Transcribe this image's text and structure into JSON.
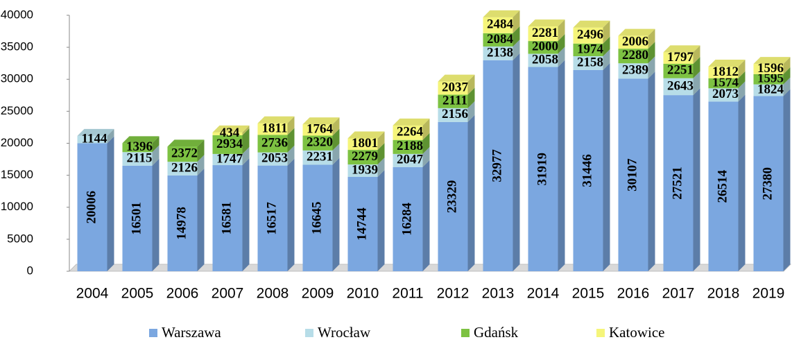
{
  "chart_data": {
    "type": "bar3d_stacked",
    "categories": [
      "2004",
      "2005",
      "2006",
      "2007",
      "2008",
      "2009",
      "2010",
      "2011",
      "2012",
      "2013",
      "2014",
      "2015",
      "2016",
      "2017",
      "2018",
      "2019"
    ],
    "series": [
      {
        "name": "Warszawa",
        "color": "#7ba7e0",
        "values": [
          20006,
          16501,
          14978,
          16581,
          16517,
          16645,
          14744,
          16284,
          23329,
          32977,
          31919,
          31446,
          30107,
          27521,
          26514,
          27380
        ]
      },
      {
        "name": "Wrocław",
        "color": "#b7dde8",
        "values": [
          1144,
          2115,
          2126,
          1747,
          2053,
          2231,
          1939,
          2047,
          2156,
          2138,
          2058,
          2158,
          2389,
          2643,
          2073,
          1824
        ]
      },
      {
        "name": "Gdańsk",
        "color": "#7dc242",
        "values": [
          null,
          1396,
          2372,
          2934,
          2736,
          2320,
          2279,
          2188,
          2111,
          2084,
          2000,
          1974,
          2280,
          2251,
          1574,
          1595
        ]
      },
      {
        "name": "Katowice",
        "color": "#f5f57a",
        "values": [
          null,
          null,
          null,
          434,
          1811,
          1764,
          1801,
          2264,
          2037,
          2484,
          2281,
          2496,
          2006,
          1797,
          1812,
          1596
        ]
      }
    ],
    "ylim": [
      0,
      40000
    ],
    "yticks": [
      0,
      5000,
      10000,
      15000,
      20000,
      25000,
      30000,
      35000,
      40000
    ],
    "legend": "bottom"
  }
}
